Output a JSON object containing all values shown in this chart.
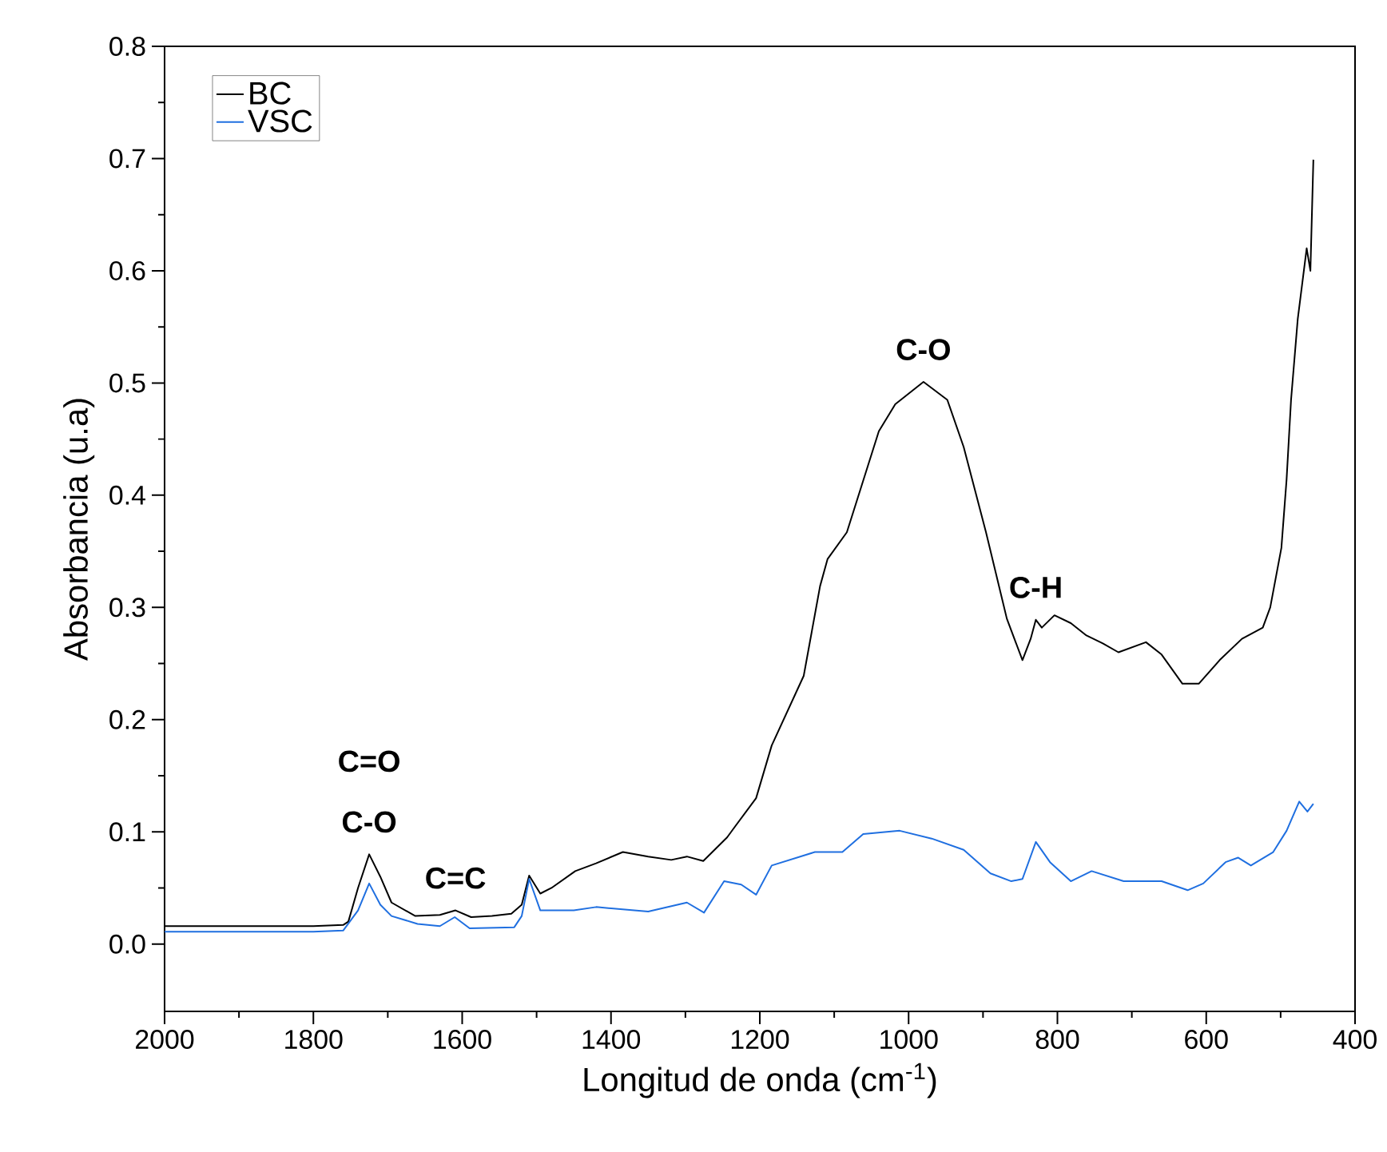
{
  "chart_data": {
    "type": "line",
    "xlabel": "Longitud de onda (cm$^{-1}$)",
    "ylabel": "Absorbancia (u.a)",
    "xlim": [
      2000,
      400
    ],
    "ylim": [
      -0.06,
      0.8
    ],
    "xticks": [
      2000,
      1800,
      1600,
      1400,
      1200,
      1000,
      800,
      600,
      400
    ],
    "yticks": [
      {
        "value": 0,
        "label": "0.0"
      },
      0.1,
      0.2,
      0.3,
      0.4,
      0.5,
      0.6,
      0.7,
      0.8
    ],
    "legend": "top left",
    "grid": false,
    "marker": "none",
    "line_style": "solid",
    "annotations": [
      {
        "text": "C=O",
        "x": 1725,
        "y": 0.08
      },
      {
        "text": "C-O",
        "x": 1725,
        "y": 0.08
      },
      {
        "text": "C=C",
        "x": 1609,
        "y": 0.03
      },
      {
        "text": "C-O",
        "x": 980,
        "y": 0.501
      },
      {
        "text": "C-H",
        "x": 829,
        "y": 0.289
      }
    ],
    "series": [
      {
        "name": "BC",
        "color": "#000000",
        "x": [
          2000,
          1900,
          1800,
          1760,
          1753,
          1740,
          1725,
          1710,
          1695,
          1663,
          1630,
          1609,
          1588,
          1560,
          1534,
          1520,
          1510,
          1495,
          1480,
          1448,
          1420,
          1384,
          1350,
          1319,
          1298,
          1276,
          1244,
          1233,
          1205,
          1184,
          1141,
          1119,
          1109,
          1083,
          1040,
          1018,
          980,
          948,
          926,
          896,
          868,
          847,
          836,
          829,
          821,
          804,
          782,
          761,
          739,
          718,
          681,
          660,
          632,
          610,
          582,
          552,
          524,
          514,
          499,
          492,
          486,
          477,
          465,
          460,
          456
        ],
        "values": [
          0.016,
          0.016,
          0.016,
          0.017,
          0.02,
          0.05,
          0.08,
          0.06,
          0.037,
          0.025,
          0.026,
          0.03,
          0.024,
          0.025,
          0.027,
          0.035,
          0.061,
          0.045,
          0.05,
          0.065,
          0.072,
          0.082,
          0.078,
          0.075,
          0.078,
          0.074,
          0.095,
          0.105,
          0.13,
          0.177,
          0.239,
          0.319,
          0.343,
          0.367,
          0.457,
          0.481,
          0.501,
          0.485,
          0.443,
          0.367,
          0.29,
          0.253,
          0.272,
          0.289,
          0.282,
          0.293,
          0.286,
          0.275,
          0.268,
          0.26,
          0.269,
          0.258,
          0.232,
          0.232,
          0.253,
          0.272,
          0.282,
          0.3,
          0.353,
          0.414,
          0.485,
          0.557,
          0.62,
          0.6,
          0.699
        ]
      },
      {
        "name": "VSC",
        "color": "#1f6fe0",
        "x": [
          2000,
          1900,
          1800,
          1760,
          1740,
          1725,
          1710,
          1695,
          1660,
          1630,
          1610,
          1590,
          1530,
          1520,
          1510,
          1495,
          1450,
          1420,
          1350,
          1298,
          1275,
          1248,
          1225,
          1205,
          1184,
          1126,
          1089,
          1061,
          1012,
          969,
          926,
          890,
          862,
          847,
          829,
          810,
          782,
          754,
          711,
          660,
          625,
          604,
          574,
          557,
          540,
          510,
          492,
          475,
          464,
          456
        ],
        "values": [
          0.011,
          0.011,
          0.011,
          0.012,
          0.03,
          0.054,
          0.035,
          0.025,
          0.018,
          0.016,
          0.024,
          0.014,
          0.015,
          0.025,
          0.058,
          0.03,
          0.03,
          0.033,
          0.029,
          0.037,
          0.028,
          0.056,
          0.053,
          0.044,
          0.07,
          0.082,
          0.082,
          0.098,
          0.101,
          0.094,
          0.084,
          0.063,
          0.056,
          0.058,
          0.091,
          0.073,
          0.056,
          0.065,
          0.056,
          0.056,
          0.048,
          0.054,
          0.073,
          0.077,
          0.07,
          0.082,
          0.101,
          0.127,
          0.118,
          0.125
        ]
      }
    ]
  }
}
